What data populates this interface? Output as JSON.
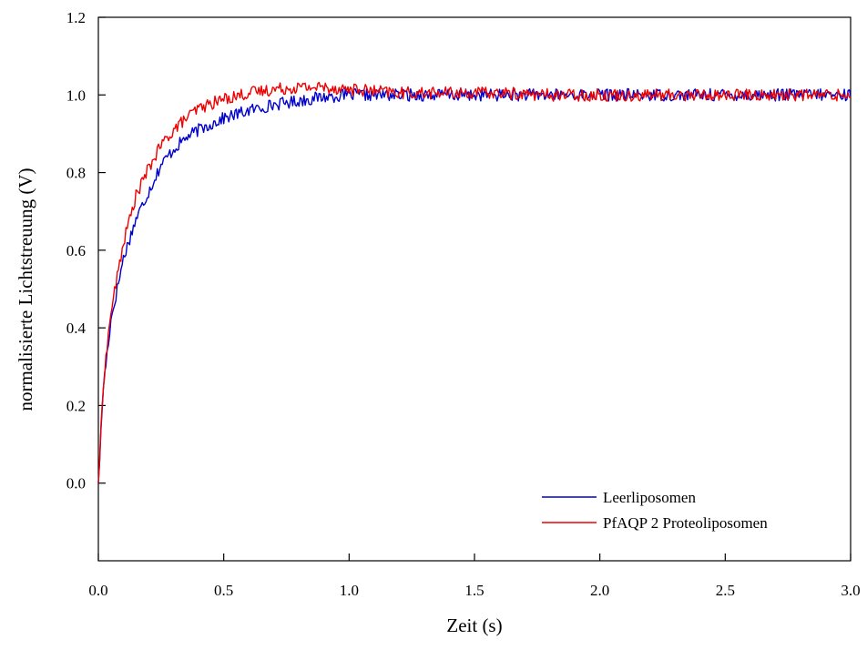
{
  "chart_data": {
    "type": "line",
    "title": "",
    "xlabel": "Zeit (s)",
    "ylabel": "normalisierte Lichtstreuung (V)",
    "xlim": [
      0,
      3.0
    ],
    "ylim": [
      -0.2,
      1.2
    ],
    "x_ticks": [
      "0.0",
      "0.5",
      "1.0",
      "1.5",
      "2.0",
      "2.5",
      "3.0"
    ],
    "y_ticks": [
      "0.0",
      "0.2",
      "0.4",
      "0.6",
      "0.8",
      "1.0",
      "1.2"
    ],
    "grid": false,
    "legend_position": "bottom-right",
    "series": [
      {
        "name": "Leerliposomen",
        "color": "#0000cc",
        "x": [
          0.0,
          0.02,
          0.05,
          0.1,
          0.15,
          0.2,
          0.25,
          0.3,
          0.35,
          0.4,
          0.5,
          0.6,
          0.7,
          0.8,
          0.9,
          1.0,
          1.1,
          1.2,
          1.4,
          1.6,
          1.8,
          2.0,
          2.2,
          2.4,
          2.6,
          2.8,
          3.0
        ],
        "y": [
          0.0,
          0.25,
          0.42,
          0.58,
          0.68,
          0.75,
          0.82,
          0.86,
          0.89,
          0.91,
          0.94,
          0.96,
          0.975,
          0.985,
          0.995,
          1.0,
          1.0,
          1.0,
          1.0,
          1.0,
          1.0,
          1.0,
          1.0,
          1.0,
          1.0,
          1.0,
          1.0
        ]
      },
      {
        "name": "PfAQP 2 Proteoliposomen",
        "color": "#ee0000",
        "x": [
          0.0,
          0.02,
          0.05,
          0.1,
          0.15,
          0.2,
          0.25,
          0.3,
          0.35,
          0.4,
          0.5,
          0.6,
          0.7,
          0.8,
          0.9,
          1.0,
          1.1,
          1.2,
          1.4,
          1.6,
          1.8,
          2.0,
          2.2,
          2.4,
          2.6,
          2.8,
          3.0
        ],
        "y": [
          0.0,
          0.26,
          0.44,
          0.62,
          0.74,
          0.81,
          0.87,
          0.91,
          0.94,
          0.965,
          0.99,
          1.005,
          1.015,
          1.02,
          1.02,
          1.015,
          1.01,
          1.005,
          1.005,
          1.005,
          1.0,
          1.0,
          1.0,
          1.0,
          1.0,
          1.0,
          1.0
        ]
      }
    ]
  }
}
